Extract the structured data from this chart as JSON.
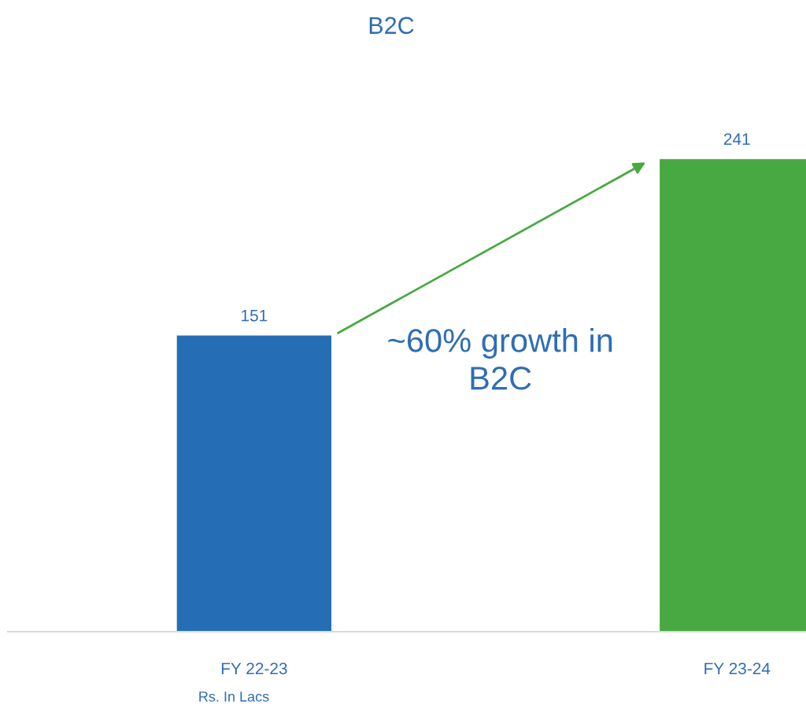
{
  "chart_data": {
    "type": "bar",
    "title": "B2C",
    "categories": [
      "FY 22-23",
      "FY 23-24"
    ],
    "values": [
      151,
      241
    ],
    "colors": [
      "#256eb5",
      "#48a942"
    ],
    "data_labels": true,
    "annotations": [
      "~60% growth in\nB2C",
      "Rs. In Lacs"
    ]
  }
}
